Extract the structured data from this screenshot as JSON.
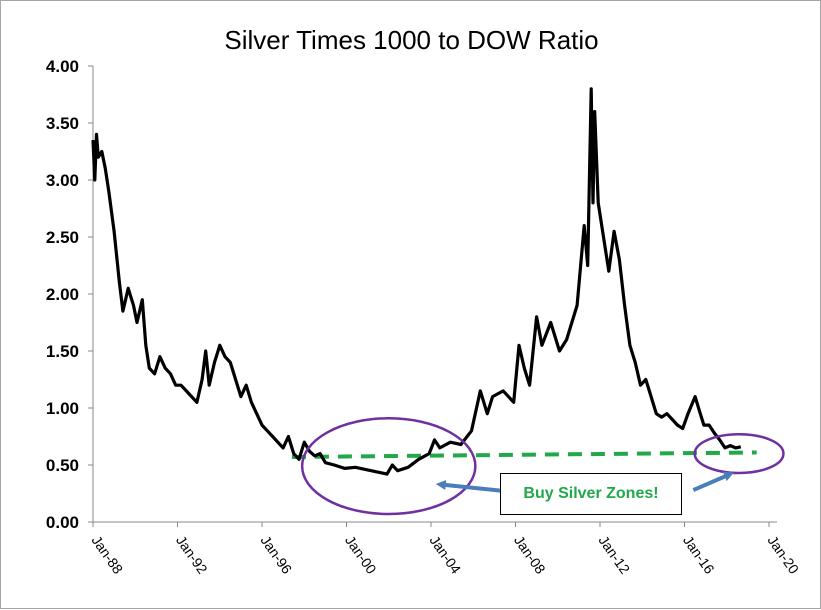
{
  "chart_data": {
    "type": "line",
    "title": "Silver Times 1000 to DOW Ratio",
    "xlabel": "",
    "ylabel": "",
    "ylim": [
      0,
      4
    ],
    "xlim": [
      "1988-01",
      "2020-01"
    ],
    "yticks": [
      "0.00",
      "0.50",
      "1.00",
      "1.50",
      "2.00",
      "2.50",
      "3.00",
      "3.50",
      "4.00"
    ],
    "xticks": [
      "Jan-88",
      "Jan-92",
      "Jan-96",
      "Jan-00",
      "Jan-04",
      "Jan-08",
      "Jan-12",
      "Jan-16",
      "Jan-20"
    ],
    "grid": false,
    "legend": "none",
    "series": [
      {
        "line_color": "#000000",
        "points": [
          [
            "1988-01",
            3.35
          ],
          [
            "1988-02",
            3.0
          ],
          [
            "1988-03",
            3.4
          ],
          [
            "1988-04",
            3.2
          ],
          [
            "1988-06",
            3.25
          ],
          [
            "1988-08",
            3.1
          ],
          [
            "1988-10",
            2.9
          ],
          [
            "1989-01",
            2.55
          ],
          [
            "1989-04",
            2.1
          ],
          [
            "1989-06",
            1.85
          ],
          [
            "1989-09",
            2.05
          ],
          [
            "1989-12",
            1.9
          ],
          [
            "1990-02",
            1.75
          ],
          [
            "1990-05",
            1.95
          ],
          [
            "1990-07",
            1.55
          ],
          [
            "1990-09",
            1.35
          ],
          [
            "1990-12",
            1.3
          ],
          [
            "1991-03",
            1.45
          ],
          [
            "1991-06",
            1.35
          ],
          [
            "1991-09",
            1.3
          ],
          [
            "1991-12",
            1.2
          ],
          [
            "1992-03",
            1.2
          ],
          [
            "1992-06",
            1.15
          ],
          [
            "1992-09",
            1.1
          ],
          [
            "1992-12",
            1.05
          ],
          [
            "1993-03",
            1.25
          ],
          [
            "1993-05",
            1.5
          ],
          [
            "1993-07",
            1.2
          ],
          [
            "1993-10",
            1.4
          ],
          [
            "1994-01",
            1.55
          ],
          [
            "1994-04",
            1.45
          ],
          [
            "1994-07",
            1.4
          ],
          [
            "1994-10",
            1.25
          ],
          [
            "1995-01",
            1.1
          ],
          [
            "1995-04",
            1.2
          ],
          [
            "1995-07",
            1.05
          ],
          [
            "1995-10",
            0.95
          ],
          [
            "1996-01",
            0.85
          ],
          [
            "1996-04",
            0.8
          ],
          [
            "1996-07",
            0.75
          ],
          [
            "1996-10",
            0.7
          ],
          [
            "1997-01",
            0.65
          ],
          [
            "1997-04",
            0.75
          ],
          [
            "1997-07",
            0.6
          ],
          [
            "1997-10",
            0.55
          ],
          [
            "1998-01",
            0.7
          ],
          [
            "1998-04",
            0.62
          ],
          [
            "1998-07",
            0.58
          ],
          [
            "1998-10",
            0.6
          ],
          [
            "1999-01",
            0.52
          ],
          [
            "1999-06",
            0.5
          ],
          [
            "1999-12",
            0.47
          ],
          [
            "2000-06",
            0.48
          ],
          [
            "2000-12",
            0.46
          ],
          [
            "2001-06",
            0.44
          ],
          [
            "2001-12",
            0.42
          ],
          [
            "2002-03",
            0.5
          ],
          [
            "2002-06",
            0.45
          ],
          [
            "2002-12",
            0.48
          ],
          [
            "2003-06",
            0.55
          ],
          [
            "2003-12",
            0.6
          ],
          [
            "2004-03",
            0.72
          ],
          [
            "2004-06",
            0.65
          ],
          [
            "2004-12",
            0.7
          ],
          [
            "2005-06",
            0.68
          ],
          [
            "2005-12",
            0.8
          ],
          [
            "2006-05",
            1.15
          ],
          [
            "2006-09",
            0.95
          ],
          [
            "2006-12",
            1.1
          ],
          [
            "2007-06",
            1.15
          ],
          [
            "2007-12",
            1.05
          ],
          [
            "2008-03",
            1.55
          ],
          [
            "2008-06",
            1.35
          ],
          [
            "2008-09",
            1.2
          ],
          [
            "2009-01",
            1.8
          ],
          [
            "2009-04",
            1.55
          ],
          [
            "2009-09",
            1.75
          ],
          [
            "2010-02",
            1.5
          ],
          [
            "2010-06",
            1.6
          ],
          [
            "2010-12",
            1.9
          ],
          [
            "2011-04",
            2.6
          ],
          [
            "2011-06",
            2.25
          ],
          [
            "2011-08",
            3.8
          ],
          [
            "2011-09",
            2.8
          ],
          [
            "2011-10",
            3.6
          ],
          [
            "2011-12",
            2.8
          ],
          [
            "2012-03",
            2.5
          ],
          [
            "2012-06",
            2.2
          ],
          [
            "2012-09",
            2.55
          ],
          [
            "2012-12",
            2.3
          ],
          [
            "2013-03",
            1.9
          ],
          [
            "2013-06",
            1.55
          ],
          [
            "2013-09",
            1.4
          ],
          [
            "2013-12",
            1.2
          ],
          [
            "2014-03",
            1.25
          ],
          [
            "2014-06",
            1.1
          ],
          [
            "2014-09",
            0.95
          ],
          [
            "2014-12",
            0.92
          ],
          [
            "2015-03",
            0.95
          ],
          [
            "2015-06",
            0.9
          ],
          [
            "2015-09",
            0.85
          ],
          [
            "2015-12",
            0.82
          ],
          [
            "2016-03",
            0.95
          ],
          [
            "2016-07",
            1.1
          ],
          [
            "2016-10",
            0.95
          ],
          [
            "2016-12",
            0.85
          ],
          [
            "2017-03",
            0.85
          ],
          [
            "2017-06",
            0.78
          ],
          [
            "2017-09",
            0.72
          ],
          [
            "2017-12",
            0.65
          ],
          [
            "2018-03",
            0.67
          ],
          [
            "2018-06",
            0.65
          ],
          [
            "2018-09",
            0.66
          ]
        ]
      }
    ],
    "reference_line": {
      "style": "dashed",
      "color": "#22a84a",
      "from": [
        "1997-06",
        0.57
      ],
      "to": [
        "2019-06",
        0.61
      ]
    },
    "highlights": [
      {
        "shape": "ellipse",
        "color": "#7030a0",
        "center": [
          "2002-01",
          0.49
        ],
        "rx_years": 4.1,
        "ry_value": 0.42
      },
      {
        "shape": "ellipse",
        "color": "#7030a0",
        "center": [
          "2018-08",
          0.6
        ],
        "rx_years": 2.1,
        "ry_value": 0.17
      }
    ],
    "arrows": [
      {
        "color": "#4a7ebb",
        "from": [
          "2009-03",
          0.24
        ],
        "to": [
          "2004-06",
          0.33
        ]
      },
      {
        "color": "#4a7ebb",
        "from": [
          "2016-06",
          0.28
        ],
        "to": [
          "2018-03",
          0.42
        ]
      }
    ],
    "annotation": "Buy Silver Zones!",
    "annotation_color": "#22a84a"
  }
}
